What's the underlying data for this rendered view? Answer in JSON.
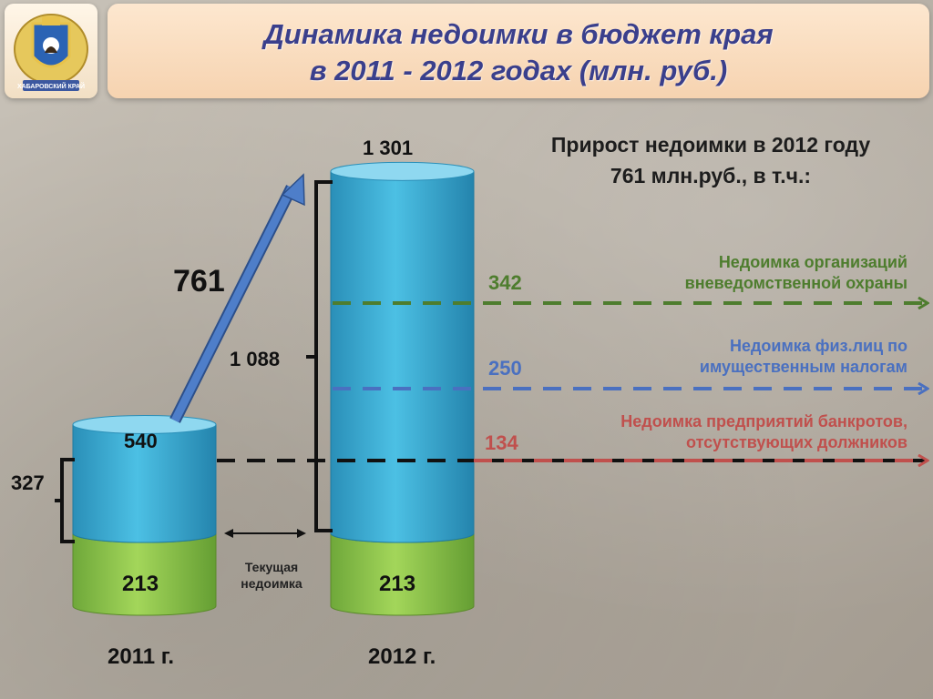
{
  "title": {
    "line1": "Динамика недоимки в бюджет края",
    "line2": "в 2011 - 2012 годах (млн. руб.)"
  },
  "logo": {
    "name": "coat-of-arms-icon",
    "text": "ХАБАРОВСКИЙ КРАЙ"
  },
  "subtitle": {
    "line1": "Прирост недоимки в 2012 году",
    "line2": "761 млн.руб., в т.ч.:"
  },
  "chart_data": {
    "type": "bar",
    "categories": [
      "2011 г.",
      "2012 г."
    ],
    "series": [
      {
        "name": "Текущая недоимка",
        "values": [
          213,
          213
        ]
      },
      {
        "name": "",
        "values": [
          327,
          1088
        ]
      }
    ],
    "totals": [
      540,
      1301
    ],
    "totals_labels": [
      "540",
      "1 301"
    ],
    "upper_labels": [
      "327",
      "1 088"
    ],
    "base_labels": [
      "213",
      "213"
    ],
    "increase": {
      "value": 761,
      "label": "761"
    },
    "breakdown": [
      {
        "value": 342,
        "label": "342",
        "line1": "Недоимка организаций",
        "line2": "вневедомственной охраны",
        "color": "#4e7d2e"
      },
      {
        "value": 250,
        "label": "250",
        "line1": "Недоимка физ.лиц по",
        "line2": "имущественным налогам",
        "color": "#4a70c0"
      },
      {
        "value": 134,
        "label": "134",
        "line1": "Недоимка предприятий банкротов,",
        "line2": "отсутствующих должников",
        "color": "#c0504d"
      }
    ],
    "current_debt_label": {
      "line1": "Текущая",
      "line2": "недоимка"
    },
    "colors": {
      "base": "#8bc34a",
      "top": "#3aa6cc",
      "label_text": "#111111"
    }
  }
}
